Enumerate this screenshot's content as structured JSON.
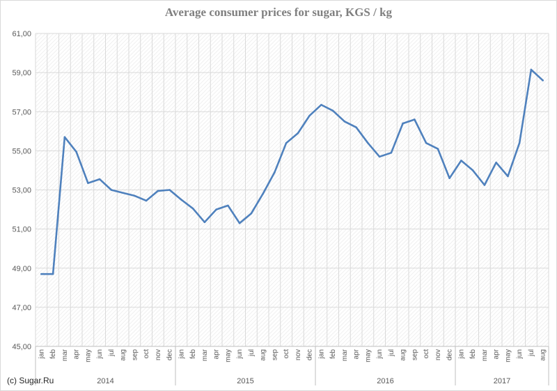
{
  "credit": "(c) Sugar.Ru",
  "colors": {
    "line": "#4f81bd",
    "grid": "#d9d9d9",
    "axis": "#bfbfbf"
  },
  "chart_data": {
    "type": "line",
    "title": "Average consumer prices for sugar, KGS / kg",
    "xlabel": "",
    "ylabel": "",
    "ylim": [
      45,
      61
    ],
    "y_ticks": [
      "45,00",
      "47,00",
      "49,00",
      "51,00",
      "53,00",
      "55,00",
      "57,00",
      "59,00",
      "61,00"
    ],
    "grid": true,
    "legend": "none",
    "year_groups": [
      {
        "year": "2014",
        "count": 12
      },
      {
        "year": "2015",
        "count": 12
      },
      {
        "year": "2016",
        "count": 12
      },
      {
        "year": "2017",
        "count": 8
      }
    ],
    "categories": [
      "jan",
      "feb",
      "mar",
      "apr",
      "may",
      "jun",
      "jul",
      "aug",
      "sep",
      "oct",
      "nov",
      "dec",
      "jan",
      "feb",
      "mar",
      "apr",
      "may",
      "jun",
      "jul",
      "aug",
      "sep",
      "oct",
      "nov",
      "dec",
      "jan",
      "feb",
      "mar",
      "apr",
      "may",
      "jun",
      "jul",
      "aug",
      "sep",
      "oct",
      "nov",
      "dec",
      "jan",
      "feb",
      "mar",
      "apr",
      "may",
      "jun",
      "jul",
      "aug"
    ],
    "series": [
      {
        "values": [
          48.7,
          48.7,
          55.7,
          54.95,
          53.35,
          53.55,
          53.0,
          52.85,
          52.7,
          52.45,
          52.95,
          53.0,
          52.5,
          52.05,
          51.35,
          52.0,
          52.2,
          51.3,
          51.8,
          52.8,
          53.9,
          55.4,
          55.9,
          56.8,
          57.35,
          57.05,
          56.5,
          56.2,
          55.4,
          54.7,
          54.9,
          56.4,
          56.6,
          55.4,
          55.1,
          53.6,
          54.5,
          54.0,
          53.25,
          54.4,
          53.7,
          55.4,
          59.15,
          58.6
        ]
      }
    ]
  }
}
